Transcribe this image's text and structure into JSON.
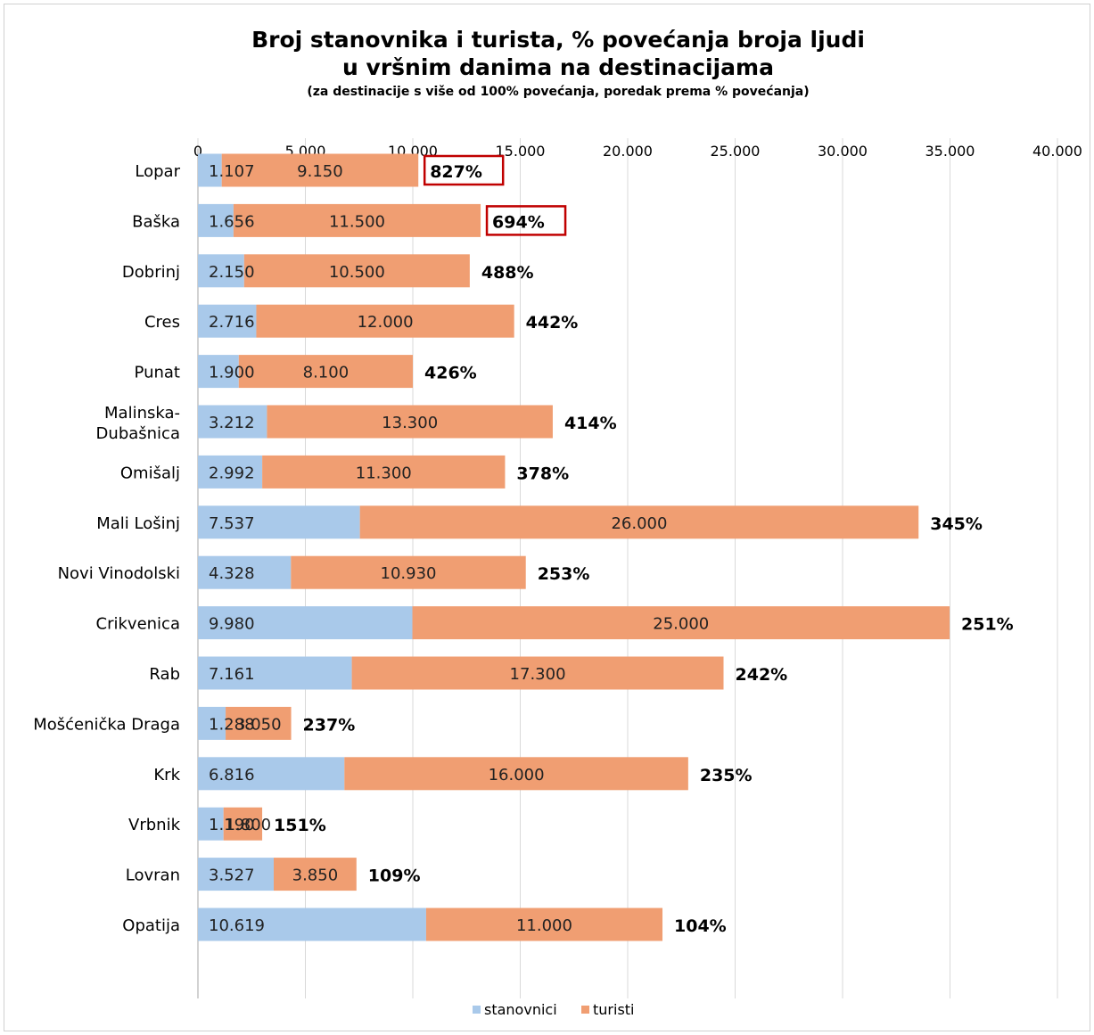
{
  "chart_data": {
    "type": "bar",
    "orientation": "horizontal",
    "stacked": true,
    "title": "Broj stanovnika i turista, % povećanja broja ljudi",
    "title_line2": "u vršnim danima na destinacijama",
    "subtitle": "(za destinacije s više od 100% povećanja, poredak prema % povećanja)",
    "xlim": [
      0,
      40000
    ],
    "x_ticks": [
      0,
      5000,
      10000,
      15000,
      20000,
      25000,
      30000,
      35000,
      40000
    ],
    "x_tick_labels": [
      "0",
      "5.000",
      "10.000",
      "15.000",
      "20.000",
      "25.000",
      "30.000",
      "35.000",
      "40.000"
    ],
    "grid": true,
    "legend_position": "bottom",
    "categories": [
      "Lopar",
      "Baška",
      "Dobrinj",
      "Cres",
      "Punat",
      "Malinska-Dubašnica",
      "Omišalj",
      "Mali Lošinj",
      "Novi Vinodolski",
      "Crikvenica",
      "Rab",
      "Mošćenička Draga",
      "Krk",
      "Vrbnik",
      "Lovran",
      "Opatija"
    ],
    "series": [
      {
        "name": "stanovnici",
        "color": "#a9c9ea",
        "values": [
          1107,
          1656,
          2150,
          2716,
          1900,
          3212,
          2992,
          7537,
          4328,
          9980,
          7161,
          1288,
          6816,
          1190,
          3527,
          10619
        ],
        "labels": [
          "1.107",
          "1.656",
          "2.150",
          "2.716",
          "1.900",
          "3.212",
          "2.992",
          "7.537",
          "4.328",
          "9.980",
          "7.161",
          "1.288",
          "6.816",
          "1.190",
          "3.527",
          "10.619"
        ]
      },
      {
        "name": "turisti",
        "color": "#f09e72",
        "values": [
          9150,
          11500,
          10500,
          12000,
          8100,
          13300,
          11300,
          26000,
          10930,
          25000,
          17300,
          3050,
          16000,
          1800,
          3850,
          11000
        ],
        "labels": [
          "9.150",
          "11.500",
          "10.500",
          "12.000",
          "8.100",
          "13.300",
          "11.300",
          "26.000",
          "10.930",
          "25.000",
          "17.300",
          "3.050",
          "16.000",
          "1.800",
          "3.850",
          "11.000"
        ]
      }
    ],
    "percent_increase": [
      "827%",
      "694%",
      "488%",
      "442%",
      "426%",
      "414%",
      "378%",
      "345%",
      "253%",
      "251%",
      "242%",
      "237%",
      "235%",
      "151%",
      "109%",
      "104%"
    ],
    "highlighted": [
      true,
      true,
      false,
      false,
      false,
      false,
      false,
      false,
      false,
      false,
      false,
      false,
      false,
      false,
      false,
      false
    ],
    "highlight_color": "#c00000"
  }
}
